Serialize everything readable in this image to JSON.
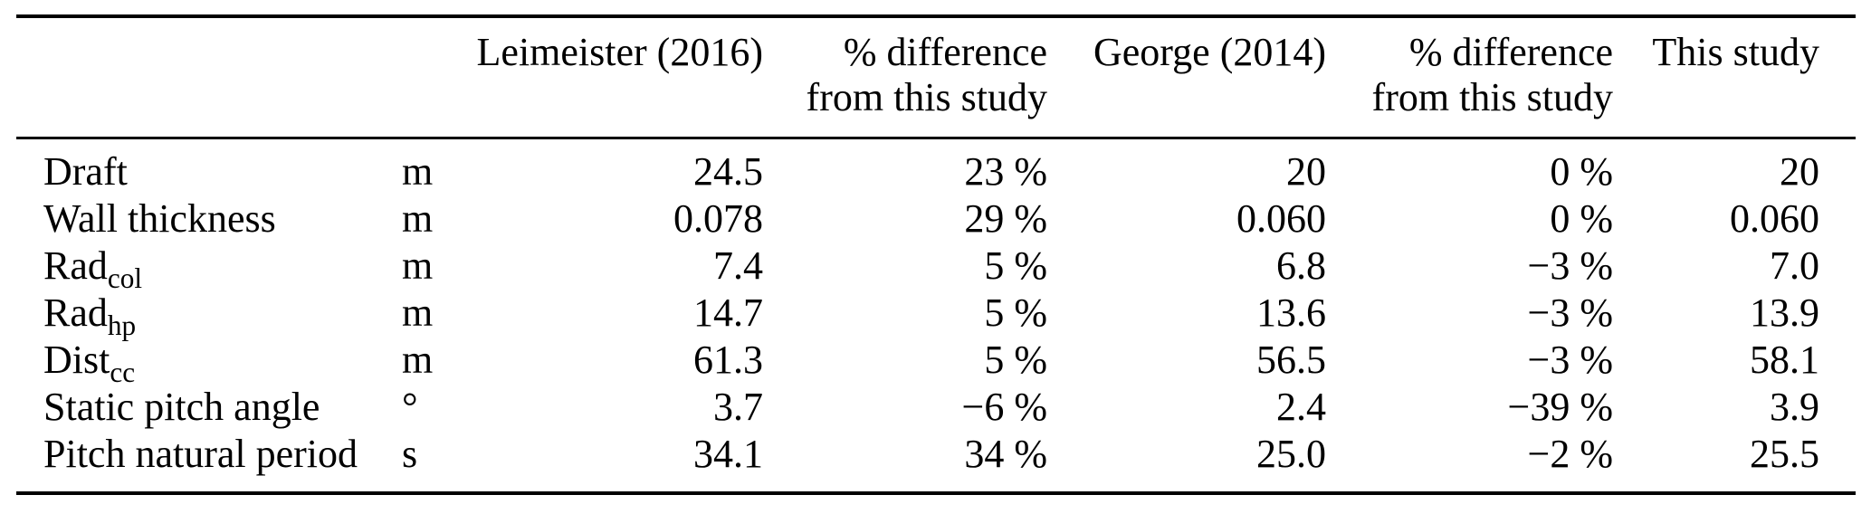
{
  "colors": {
    "text": "#000000",
    "background": "#ffffff",
    "rule": "#000000"
  },
  "table": {
    "header": {
      "col_leimeister": "Leimeister (2016)",
      "col_diff1_line1": "% difference",
      "col_diff1_line2": "from this study",
      "col_george": "George (2014)",
      "col_diff2_line1": "% difference",
      "col_diff2_line2": "from this study",
      "col_this_study": "This study"
    },
    "rows": [
      {
        "param": "Draft",
        "param_sub": "",
        "unit": "m",
        "leimeister_2016": "24.5",
        "diff_leimeister": "23 %",
        "george_2014": "20",
        "diff_george": "0 %",
        "this_study": "20"
      },
      {
        "param": "Wall thickness",
        "param_sub": "",
        "unit": "m",
        "leimeister_2016": "0.078",
        "diff_leimeister": "29 %",
        "george_2014": "0.060",
        "diff_george": "0 %",
        "this_study": "0.060"
      },
      {
        "param": "Rad",
        "param_sub": "col",
        "unit": "m",
        "leimeister_2016": "7.4",
        "diff_leimeister": "5 %",
        "george_2014": "6.8",
        "diff_george": "−3 %",
        "this_study": "7.0"
      },
      {
        "param": "Rad",
        "param_sub": "hp",
        "unit": "m",
        "leimeister_2016": "14.7",
        "diff_leimeister": "5 %",
        "george_2014": "13.6",
        "diff_george": "−3 %",
        "this_study": "13.9"
      },
      {
        "param": "Dist",
        "param_sub": "cc",
        "unit": "m",
        "leimeister_2016": "61.3",
        "diff_leimeister": "5 %",
        "george_2014": "56.5",
        "diff_george": "−3 %",
        "this_study": "58.1"
      },
      {
        "param": "Static pitch angle",
        "param_sub": "",
        "unit": "°",
        "leimeister_2016": "3.7",
        "diff_leimeister": "−6 %",
        "george_2014": "2.4",
        "diff_george": "−39 %",
        "this_study": "3.9"
      },
      {
        "param": "Pitch natural period",
        "param_sub": "",
        "unit": "s",
        "leimeister_2016": "34.1",
        "diff_leimeister": "34 %",
        "george_2014": "25.0",
        "diff_george": "−2 %",
        "this_study": "25.5"
      }
    ]
  }
}
